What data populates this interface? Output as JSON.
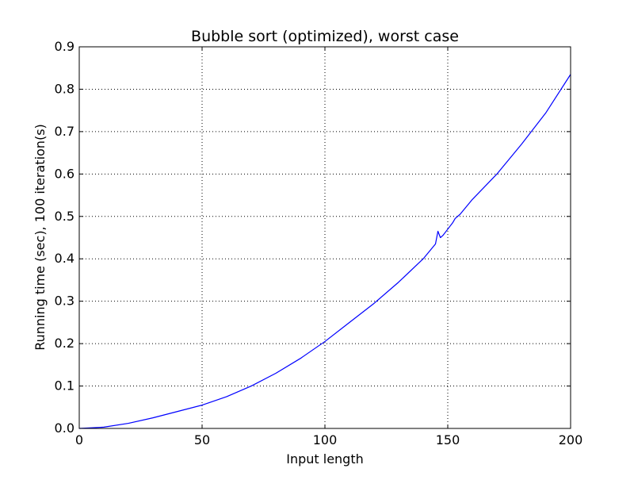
{
  "chart_data": {
    "type": "line",
    "title": "Bubble sort (optimized), worst case",
    "xlabel": "Input length",
    "ylabel": "Running time (sec), 100 iteration(s)",
    "xlim": [
      0,
      200
    ],
    "ylim": [
      0,
      0.9
    ],
    "xticks": [
      0,
      50,
      100,
      150,
      200
    ],
    "yticks": [
      0.0,
      0.1,
      0.2,
      0.3,
      0.4,
      0.5,
      0.6,
      0.7,
      0.8,
      0.9
    ],
    "grid": true,
    "legend": "none",
    "colors": {
      "line": "#0000ff",
      "grid": "#000000",
      "axes": "#000000"
    },
    "series": [
      {
        "x": [
          0,
          10,
          20,
          30,
          40,
          50,
          60,
          70,
          80,
          90,
          100,
          110,
          120,
          130,
          140,
          145,
          146,
          147,
          148,
          150,
          152,
          153,
          155,
          160,
          170,
          180,
          190,
          200
        ],
        "y": [
          0.0,
          0.003,
          0.012,
          0.025,
          0.04,
          0.055,
          0.075,
          0.1,
          0.13,
          0.165,
          0.205,
          0.25,
          0.295,
          0.345,
          0.4,
          0.435,
          0.465,
          0.45,
          0.455,
          0.47,
          0.485,
          0.495,
          0.505,
          0.54,
          0.6,
          0.67,
          0.745,
          0.835
        ]
      }
    ]
  }
}
